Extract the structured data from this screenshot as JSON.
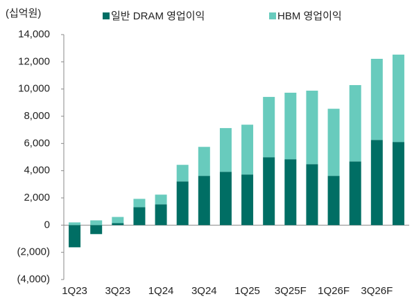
{
  "chart_data": {
    "type": "stacked_bar",
    "unit_label": "(십억원)",
    "categories": [
      "1Q23",
      null,
      "3Q23",
      null,
      "1Q24",
      null,
      "3Q24",
      null,
      "1Q25",
      null,
      "3Q25F",
      null,
      "1Q26F",
      null,
      "3Q26F",
      null
    ],
    "series": [
      {
        "name": "일반 DRAM 영업이익",
        "color": "#006e64",
        "values": [
          -1630,
          -660,
          150,
          1320,
          1530,
          3210,
          3620,
          3920,
          3720,
          4990,
          4840,
          4480,
          3620,
          4680,
          6260,
          6110
        ]
      },
      {
        "name": "HBM 영업이익",
        "color": "#68cbbd",
        "values": [
          200,
          350,
          450,
          610,
          710,
          1220,
          2130,
          3210,
          3660,
          4430,
          4890,
          5400,
          4930,
          5610,
          5960,
          6420
        ]
      }
    ],
    "ylim": [
      -4000,
      14000
    ],
    "yticks": [
      {
        "value": -4000,
        "label": "(4,000)"
      },
      {
        "value": -2000,
        "label": "(2,000)"
      },
      0,
      {
        "value": 2000,
        "label": "2,000"
      },
      {
        "value": 4000,
        "label": "4,000"
      },
      {
        "value": 6000,
        "label": "6,000"
      },
      {
        "value": 8000,
        "label": "8,000"
      },
      {
        "value": 10000,
        "label": "10,000"
      },
      {
        "value": 12000,
        "label": "12,000"
      },
      {
        "value": 14000,
        "label": "14,000"
      }
    ],
    "legend": "top",
    "grid": false
  }
}
